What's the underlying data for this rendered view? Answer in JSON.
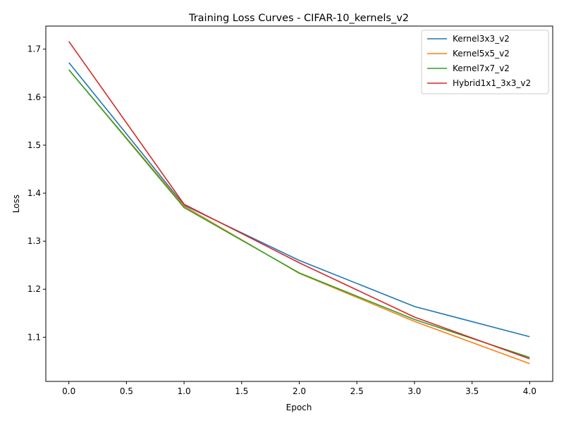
{
  "chart_data": {
    "type": "line",
    "title": "Training Loss Curves - CIFAR-10_kernels_v2",
    "xlabel": "Epoch",
    "ylabel": "Loss",
    "xlim": [
      -0.2,
      4.2
    ],
    "ylim": [
      1.008,
      1.748
    ],
    "xticks": [
      "0.0",
      "0.5",
      "1.0",
      "1.5",
      "2.0",
      "2.5",
      "3.0",
      "3.5",
      "4.0"
    ],
    "yticks": [
      "1.1",
      "1.2",
      "1.3",
      "1.4",
      "1.5",
      "1.6",
      "1.7"
    ],
    "x": [
      0,
      1,
      2,
      3,
      4
    ],
    "grid": false,
    "legend_position": "top-right",
    "series": [
      {
        "name": "Kernel3x3_v2",
        "color": "#1f77b4",
        "values": [
          1.672,
          1.375,
          1.26,
          1.164,
          1.101
        ]
      },
      {
        "name": "Kernel5x5_v2",
        "color": "#ff7f0e",
        "values": [
          1.657,
          1.373,
          1.233,
          1.133,
          1.045
        ]
      },
      {
        "name": "Kernel7x7_v2",
        "color": "#2ca02c",
        "values": [
          1.657,
          1.37,
          1.234,
          1.137,
          1.058
        ]
      },
      {
        "name": "Hybrid1x1_3x3_v2",
        "color": "#d62728",
        "values": [
          1.716,
          1.377,
          1.255,
          1.142,
          1.055
        ]
      }
    ]
  }
}
